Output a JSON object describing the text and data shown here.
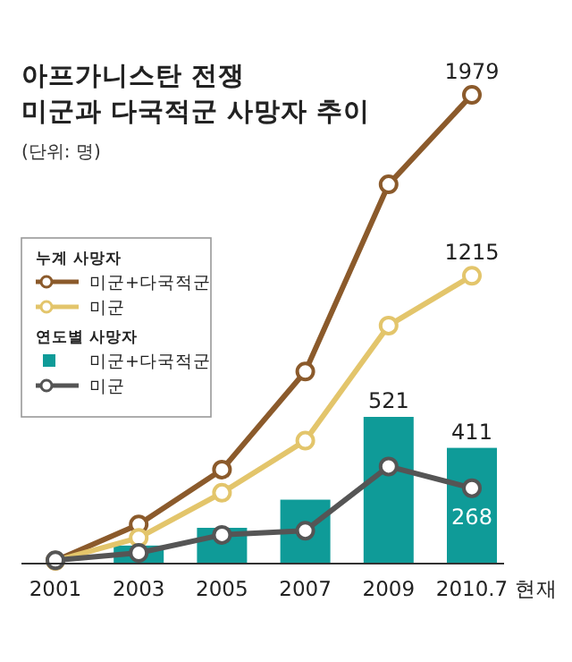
{
  "chart_data": {
    "type": "bar",
    "title": "아프가니스탄 전쟁\n미군과 다국적군 사망자 추이",
    "subtitle": "(단위: 명)",
    "xlabel": "현재",
    "categories": [
      "2001",
      "2003",
      "2005",
      "2007",
      "2009",
      "2010.7"
    ],
    "tick_labels": "x",
    "legend": "left",
    "marker": "circle",
    "legend_title": "누계 사망자",
    "annotations": [
      "연도별 사망자"
    ],
    "series": [
      {
        "name": "미군+다국적군",
        "axis": "y2",
        "color": "#0f9b98",
        "values": [
          null,
          64,
          127,
          227,
          521,
          411
        ],
        "value_labels": [
          null,
          null,
          null,
          null,
          "521",
          "411"
        ]
      },
      {
        "name": "미군+다국적군",
        "type": "line",
        "color": "#8b5a2b",
        "values": [
          12,
          165,
          397,
          811,
          1601,
          1979
        ],
        "value_labels": [
          null,
          null,
          null,
          null,
          null,
          "1979"
        ]
      },
      {
        "name": "미군",
        "type": "line",
        "color": "#e3c56b",
        "values": [
          12,
          109,
          299,
          519,
          1005,
          1215
        ],
        "value_labels": [
          null,
          null,
          null,
          null,
          null,
          "1215"
        ]
      },
      {
        "name": "미군",
        "type": "line",
        "axis": "y2",
        "color": "#555555",
        "values": [
          12,
          38,
          102,
          117,
          345,
          268
        ],
        "value_labels": [
          null,
          null,
          null,
          null,
          null,
          "268"
        ]
      }
    ]
  }
}
